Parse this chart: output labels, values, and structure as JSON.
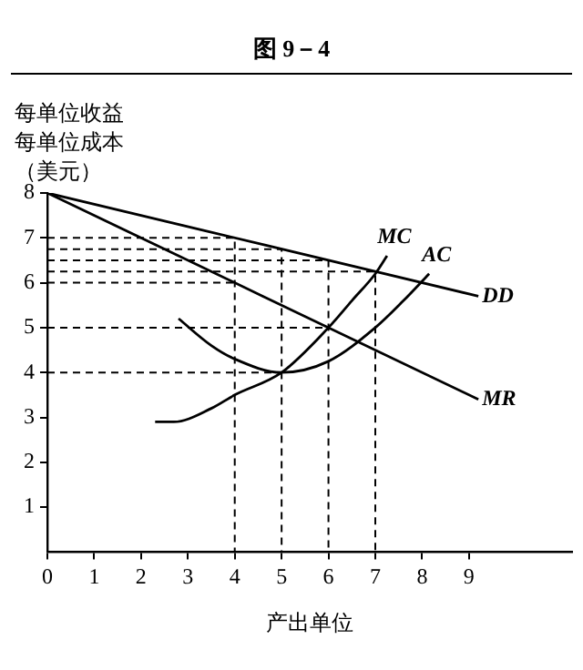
{
  "chart_data": {
    "type": "line",
    "title": "图 9－4",
    "ylabel": "每单位收益每单位成本（美元）",
    "xlabel": "产出单位",
    "xlim": [
      0,
      11.2
    ],
    "xticks": [
      0,
      1,
      2,
      3,
      4,
      5,
      6,
      7,
      8,
      9
    ],
    "ylim": [
      0,
      8
    ],
    "yticks": [
      1,
      2,
      3,
      4,
      5,
      6,
      7,
      8
    ],
    "grid": false,
    "legend": false,
    "marker": "none",
    "series": [
      {
        "name": "DD",
        "color": "#000000",
        "x": [
          0,
          9.2
        ],
        "values": [
          8,
          5.7
        ]
      },
      {
        "name": "MR",
        "color": "#000000",
        "x": [
          0,
          9.2
        ],
        "values": [
          8,
          3.4
        ]
      },
      {
        "name": "MC",
        "color": "#000000",
        "x": [
          2.3,
          2.7,
          3.5,
          4,
          5,
          6,
          6.5,
          7,
          7.25
        ],
        "values": [
          2.9,
          2.9,
          3.2,
          3.5,
          4,
          5,
          5.6,
          6.2,
          6.6
        ]
      },
      {
        "name": "AC",
        "color": "#000000",
        "x": [
          2.8,
          3.5,
          4,
          5,
          6,
          7,
          7.6,
          8.15
        ],
        "values": [
          5.2,
          4.6,
          4.3,
          4,
          4.25,
          5,
          5.6,
          6.2
        ]
      },
      {
        "color": "#000000",
        "line_style": "dashed",
        "x": [
          0,
          4,
          4
        ],
        "values": [
          7,
          7,
          0
        ]
      },
      {
        "color": "#000000",
        "line_style": "dashed",
        "x": [
          0,
          5,
          5
        ],
        "values": [
          6.75,
          6.75,
          0
        ]
      },
      {
        "color": "#000000",
        "line_style": "dashed",
        "x": [
          0,
          6,
          6
        ],
        "values": [
          6.5,
          6.5,
          0
        ]
      },
      {
        "color": "#000000",
        "line_style": "dashed",
        "x": [
          0,
          7,
          7
        ],
        "values": [
          6.25,
          6.25,
          0
        ]
      },
      {
        "color": "#000000",
        "line_style": "dashed",
        "x": [
          0,
          4
        ],
        "values": [
          6,
          6
        ]
      },
      {
        "color": "#000000",
        "line_style": "dashed",
        "x": [
          0,
          6
        ],
        "values": [
          5,
          5
        ]
      },
      {
        "color": "#000000",
        "line_style": "dashed",
        "x": [
          0,
          5
        ],
        "values": [
          4,
          4
        ]
      }
    ]
  }
}
